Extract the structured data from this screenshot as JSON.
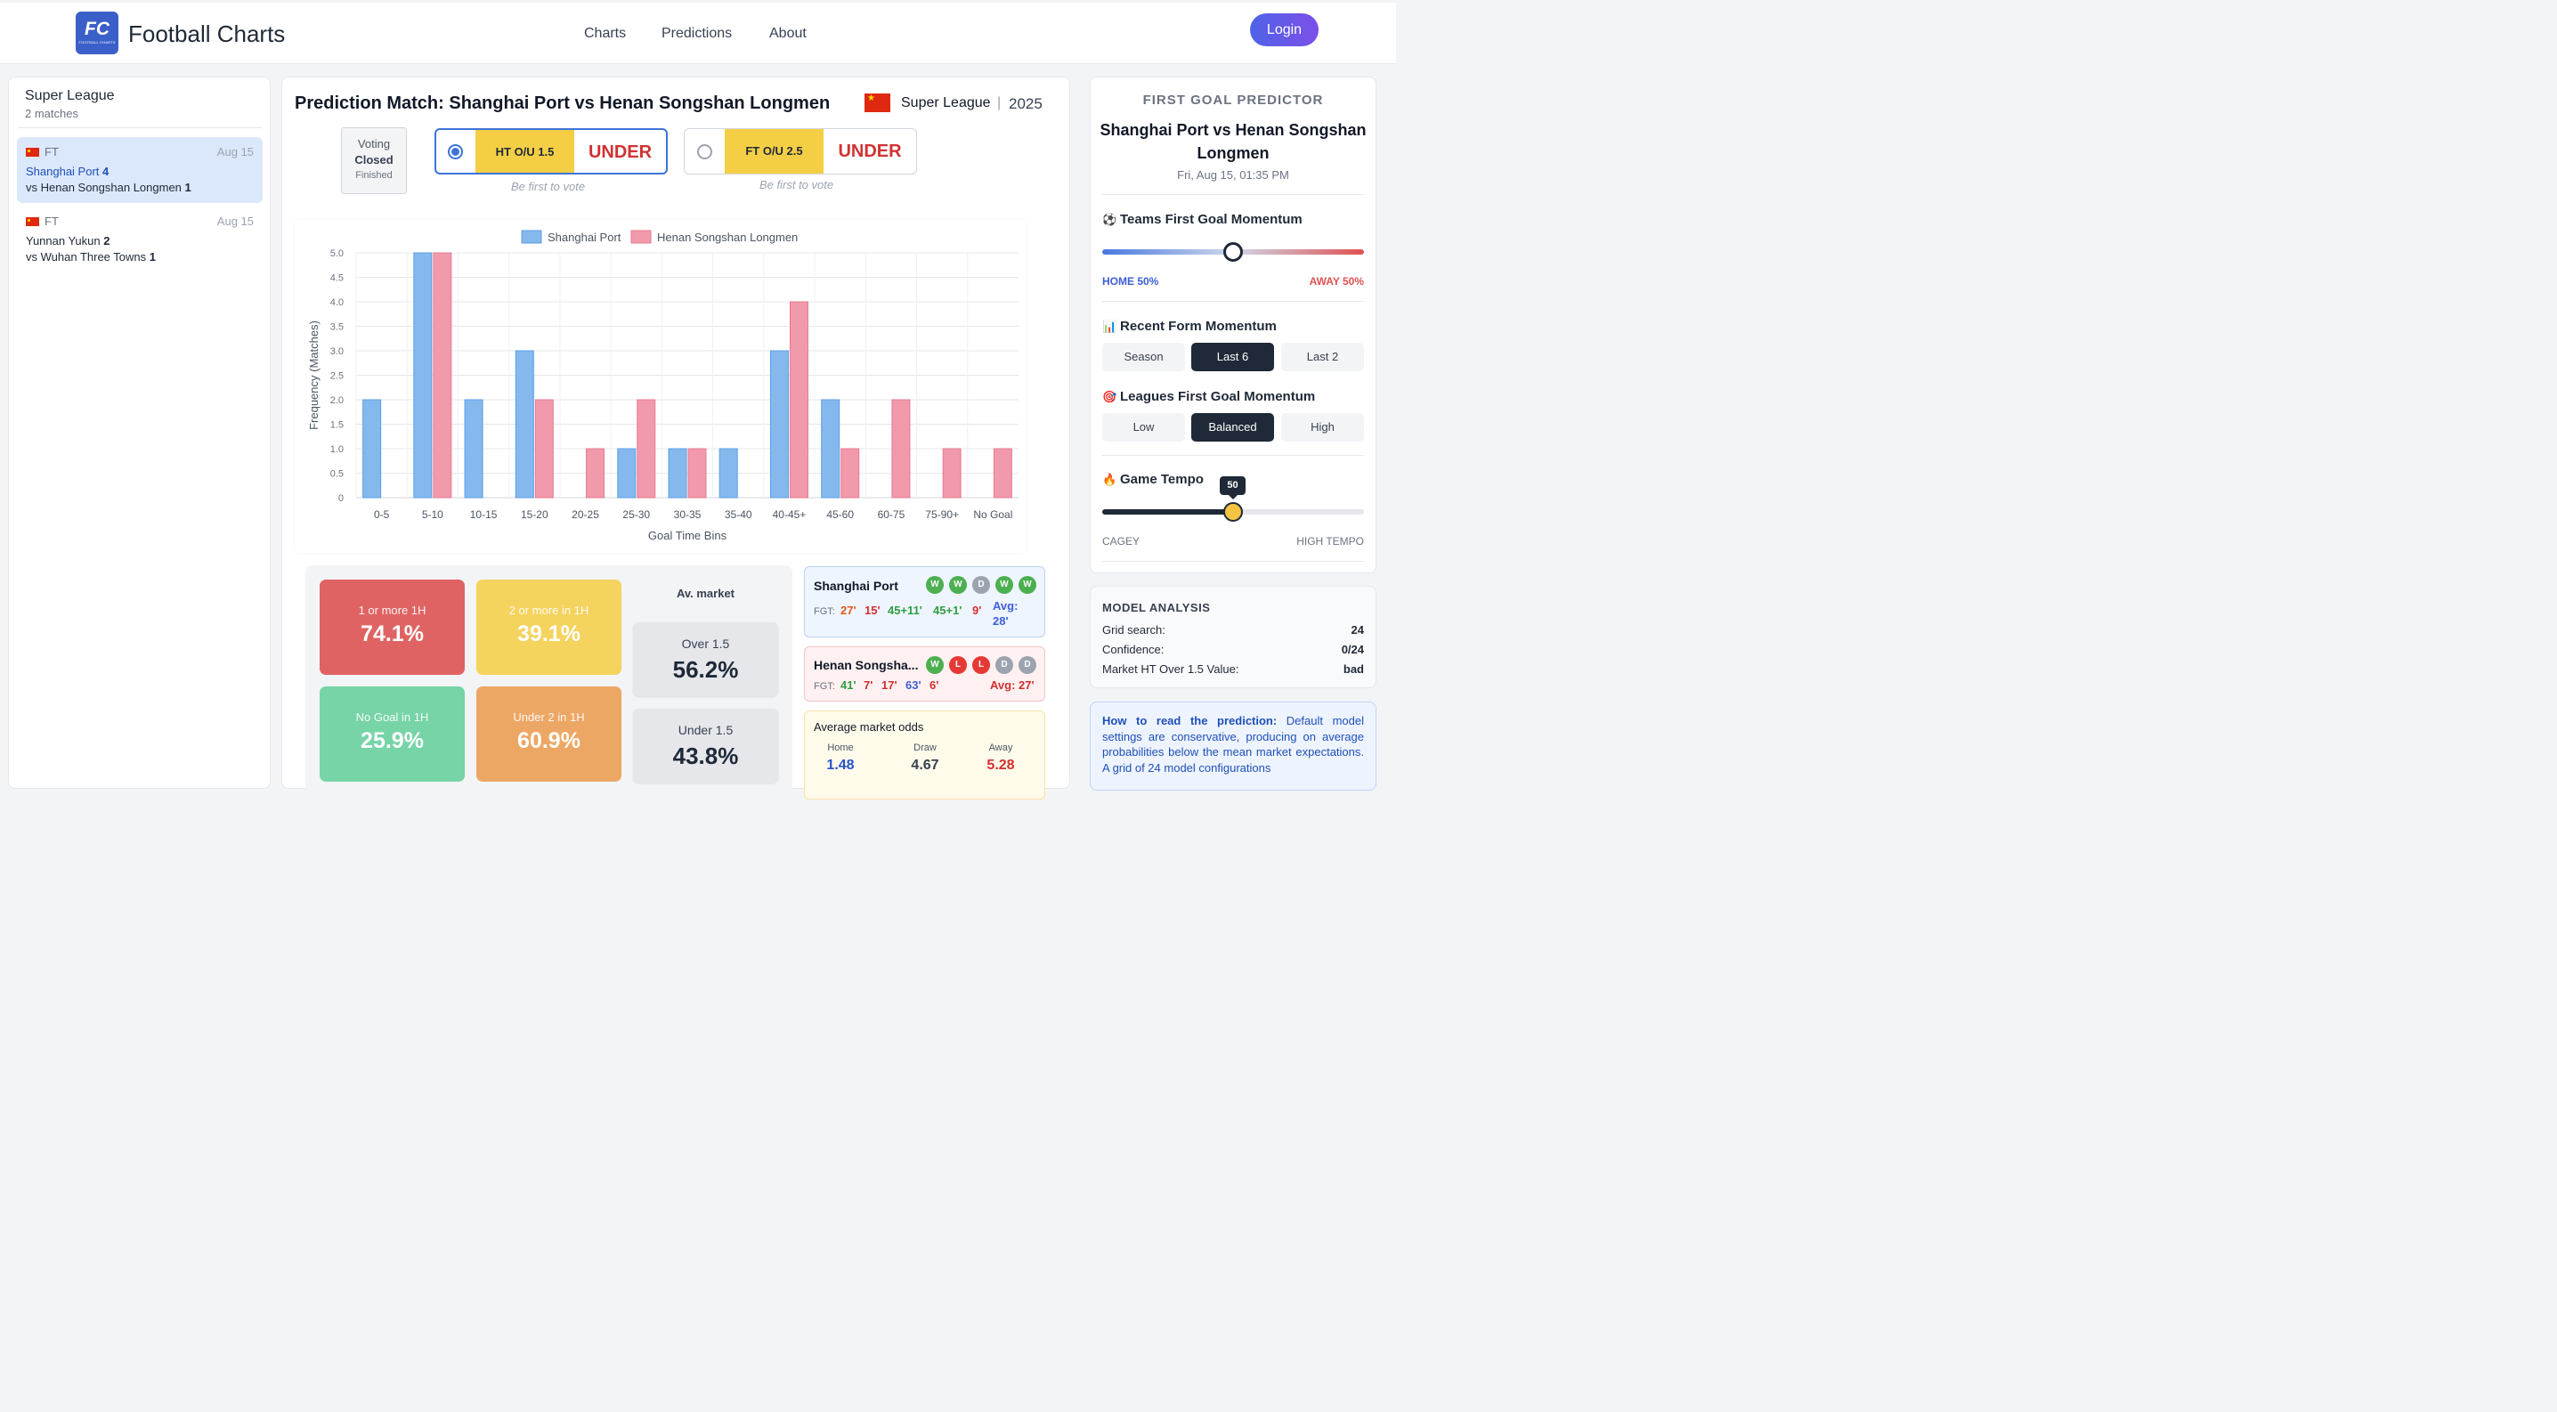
{
  "header": {
    "logo_text": "FC",
    "logo_sub": "FOOTBALL CHARTS",
    "brand": "Football Charts",
    "nav": [
      "Charts",
      "Predictions",
      "About"
    ],
    "login": "Login"
  },
  "sidebar": {
    "title": "Super League",
    "subtitle": "2 matches",
    "matches": [
      {
        "status": "FT",
        "date": "Aug 15",
        "home": "Shanghai Port",
        "home_score": "4",
        "away": "vs Henan Songshan Longmen",
        "away_score": "1"
      },
      {
        "status": "FT",
        "date": "Aug 15",
        "home": "Yunnan Yukun",
        "home_score": "2",
        "away": "vs Wuhan Three Towns",
        "away_score": "1"
      }
    ]
  },
  "main": {
    "title": "Prediction Match: Shanghai Port vs Henan Songshan Longmen",
    "league": "Super League",
    "season": "2025",
    "voting": {
      "line1": "Voting",
      "line2": "Closed",
      "line3": "Finished"
    },
    "picks": [
      {
        "market": "HT O/U 1.5",
        "value": "UNDER",
        "note": "Be first to vote"
      },
      {
        "market": "FT O/U 2.5",
        "value": "UNDER",
        "note": "Be first to vote"
      }
    ]
  },
  "chart_data": {
    "type": "bar",
    "categories": [
      "0-5",
      "5-10",
      "10-15",
      "15-20",
      "20-25",
      "25-30",
      "30-35",
      "35-40",
      "40-45+",
      "45-60",
      "60-75",
      "75-90+",
      "No Goal"
    ],
    "series": [
      {
        "name": "Shanghai Port",
        "values": [
          2,
          5,
          2,
          3,
          0,
          1,
          1,
          1,
          3,
          2,
          0,
          0,
          0
        ],
        "color": "#85b9ee"
      },
      {
        "name": "Henan Songshan Longmen",
        "values": [
          0,
          5,
          0,
          2,
          1,
          2,
          1,
          0,
          4,
          1,
          2,
          1,
          1
        ],
        "color": "#f19aab"
      }
    ],
    "xlabel": "Goal Time Bins",
    "ylabel": "Frequency (Matches)",
    "ylim": [
      0,
      5
    ],
    "yticks": [
      "0",
      "0.5",
      "1.0",
      "1.5",
      "2.0",
      "2.5",
      "3.0",
      "3.5",
      "4.0",
      "4.5",
      "5.0"
    ],
    "grid": true,
    "legend": "top-center"
  },
  "stats": {
    "tiles": [
      {
        "label": "1 or more 1H",
        "value": "74.1%",
        "color": "#e06363"
      },
      {
        "label": "2 or more in 1H",
        "value": "39.1%",
        "color": "#f4d35e"
      },
      {
        "label": "No Goal in 1H",
        "value": "25.9%",
        "color": "#77d4a7"
      },
      {
        "label": "Under 2 in 1H",
        "value": "60.9%",
        "color": "#eda765"
      }
    ],
    "av_market_title": "Av. market",
    "av_market": [
      {
        "label": "Over 1.5",
        "value": "56.2%"
      },
      {
        "label": "Under 1.5",
        "value": "43.8%"
      }
    ]
  },
  "teams": [
    {
      "name": "Shanghai Port",
      "form": [
        "W",
        "W",
        "D",
        "W",
        "W"
      ],
      "fgt_label": "FGT:",
      "fgt": [
        "27'",
        "15'",
        "45+11'",
        "45+1'",
        "9'"
      ],
      "avg_label": "Avg:",
      "avg_value": "28'"
    },
    {
      "name": "Henan Songsha...",
      "form": [
        "W",
        "L",
        "L",
        "D",
        "D"
      ],
      "fgt_label": "FGT:",
      "fgt": [
        "41'",
        "7'",
        "17'",
        "63'",
        "6'"
      ],
      "avg": "Avg: 27'"
    }
  ],
  "odds": {
    "title": "Average market odds",
    "headers": [
      "Home",
      "Draw",
      "Away"
    ],
    "values": [
      "1.48",
      "4.67",
      "5.28"
    ]
  },
  "predictor": {
    "heading": "FIRST GOAL PREDICTOR",
    "match": "Shanghai Port vs Henan Songshan Longmen",
    "datetime": "Fri, Aug 15, 01:35 PM",
    "momentum_title": "Teams First Goal Momentum",
    "momentum_home": "HOME 50%",
    "momentum_away": "AWAY 50%",
    "momentum_value": 0.5,
    "form_title": "Recent Form Momentum",
    "form_options": [
      "Season",
      "Last 6",
      "Last 2"
    ],
    "form_selected": "Last 6",
    "league_title": "Leagues First Goal Momentum",
    "league_options": [
      "Low",
      "Balanced",
      "High"
    ],
    "league_selected": "Balanced",
    "tempo_title": "Game Tempo",
    "tempo_value": "50",
    "tempo_min": "CAGEY",
    "tempo_max": "HIGH TEMPO"
  },
  "analysis": {
    "title": "MODEL ANALYSIS",
    "rows": [
      {
        "label": "Grid search:",
        "value": "24"
      },
      {
        "label": "Confidence:",
        "value": "0/24"
      },
      {
        "label": "Market HT Over 1.5 Value:",
        "value": "bad"
      }
    ]
  },
  "howto": {
    "title": "How to read the prediction:",
    "text": " Default model settings are conservative, producing on average probabilities below the mean market expectations. A grid of 24 model configurations"
  }
}
